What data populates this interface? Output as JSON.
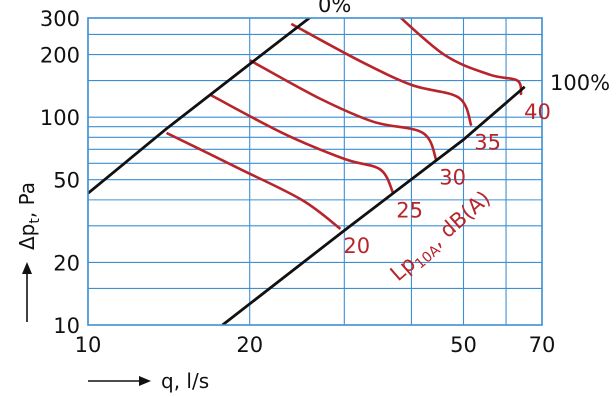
{
  "chart_data": {
    "type": "line",
    "x_scale": "log",
    "y_scale": "log",
    "xlim": [
      10,
      70
    ],
    "ylim": [
      10,
      300
    ],
    "x_tick_labels": [
      "10",
      "20",
      "50",
      "70"
    ],
    "y_tick_labels": [
      "300",
      "200",
      "100",
      "50",
      "20",
      "10"
    ],
    "xlabel": "q, l/s",
    "ylabel_prefix": "Δp",
    "ylabel_sub": "t",
    "ylabel_suffix": ", Pa",
    "grid": true,
    "curve_label_prefix": "Lp",
    "curve_label_sub": "10A",
    "curve_label_suffix": ", dB(A)",
    "colors": {
      "grid": "#3d8fd4",
      "sound": "#b7252b",
      "position": "#111111"
    },
    "position_lines": [
      {
        "name": "0%",
        "points": [
          [
            10,
            43
          ],
          [
            14,
            88
          ],
          [
            20,
            180
          ],
          [
            26,
            304
          ]
        ]
      },
      {
        "name": "100%",
        "points": [
          [
            17.8,
            10
          ],
          [
            30,
            28.5
          ],
          [
            50,
            78
          ],
          [
            65,
            140
          ]
        ]
      }
    ],
    "sound_curves": [
      {
        "name": "20",
        "points": [
          [
            14,
            84
          ],
          [
            19,
            57
          ],
          [
            25,
            40
          ],
          [
            29.5,
            29
          ]
        ]
      },
      {
        "name": "25",
        "points": [
          [
            16.9,
            128
          ],
          [
            23,
            84
          ],
          [
            30,
            63
          ],
          [
            35,
            56
          ],
          [
            37,
            43
          ]
        ]
      },
      {
        "name": "30",
        "points": [
          [
            20,
            188
          ],
          [
            27,
            123
          ],
          [
            34,
            95
          ],
          [
            42,
            84
          ],
          [
            44.5,
            62
          ]
        ]
      },
      {
        "name": "35",
        "points": [
          [
            23.9,
            281
          ],
          [
            32,
            187
          ],
          [
            40,
            143
          ],
          [
            49,
            124
          ],
          [
            51.7,
            91
          ]
        ]
      },
      {
        "name": "40",
        "points": [
          [
            36.5,
            335
          ],
          [
            46,
            200
          ],
          [
            56,
            160
          ],
          [
            63,
            150
          ],
          [
            64,
            128
          ]
        ]
      }
    ]
  }
}
